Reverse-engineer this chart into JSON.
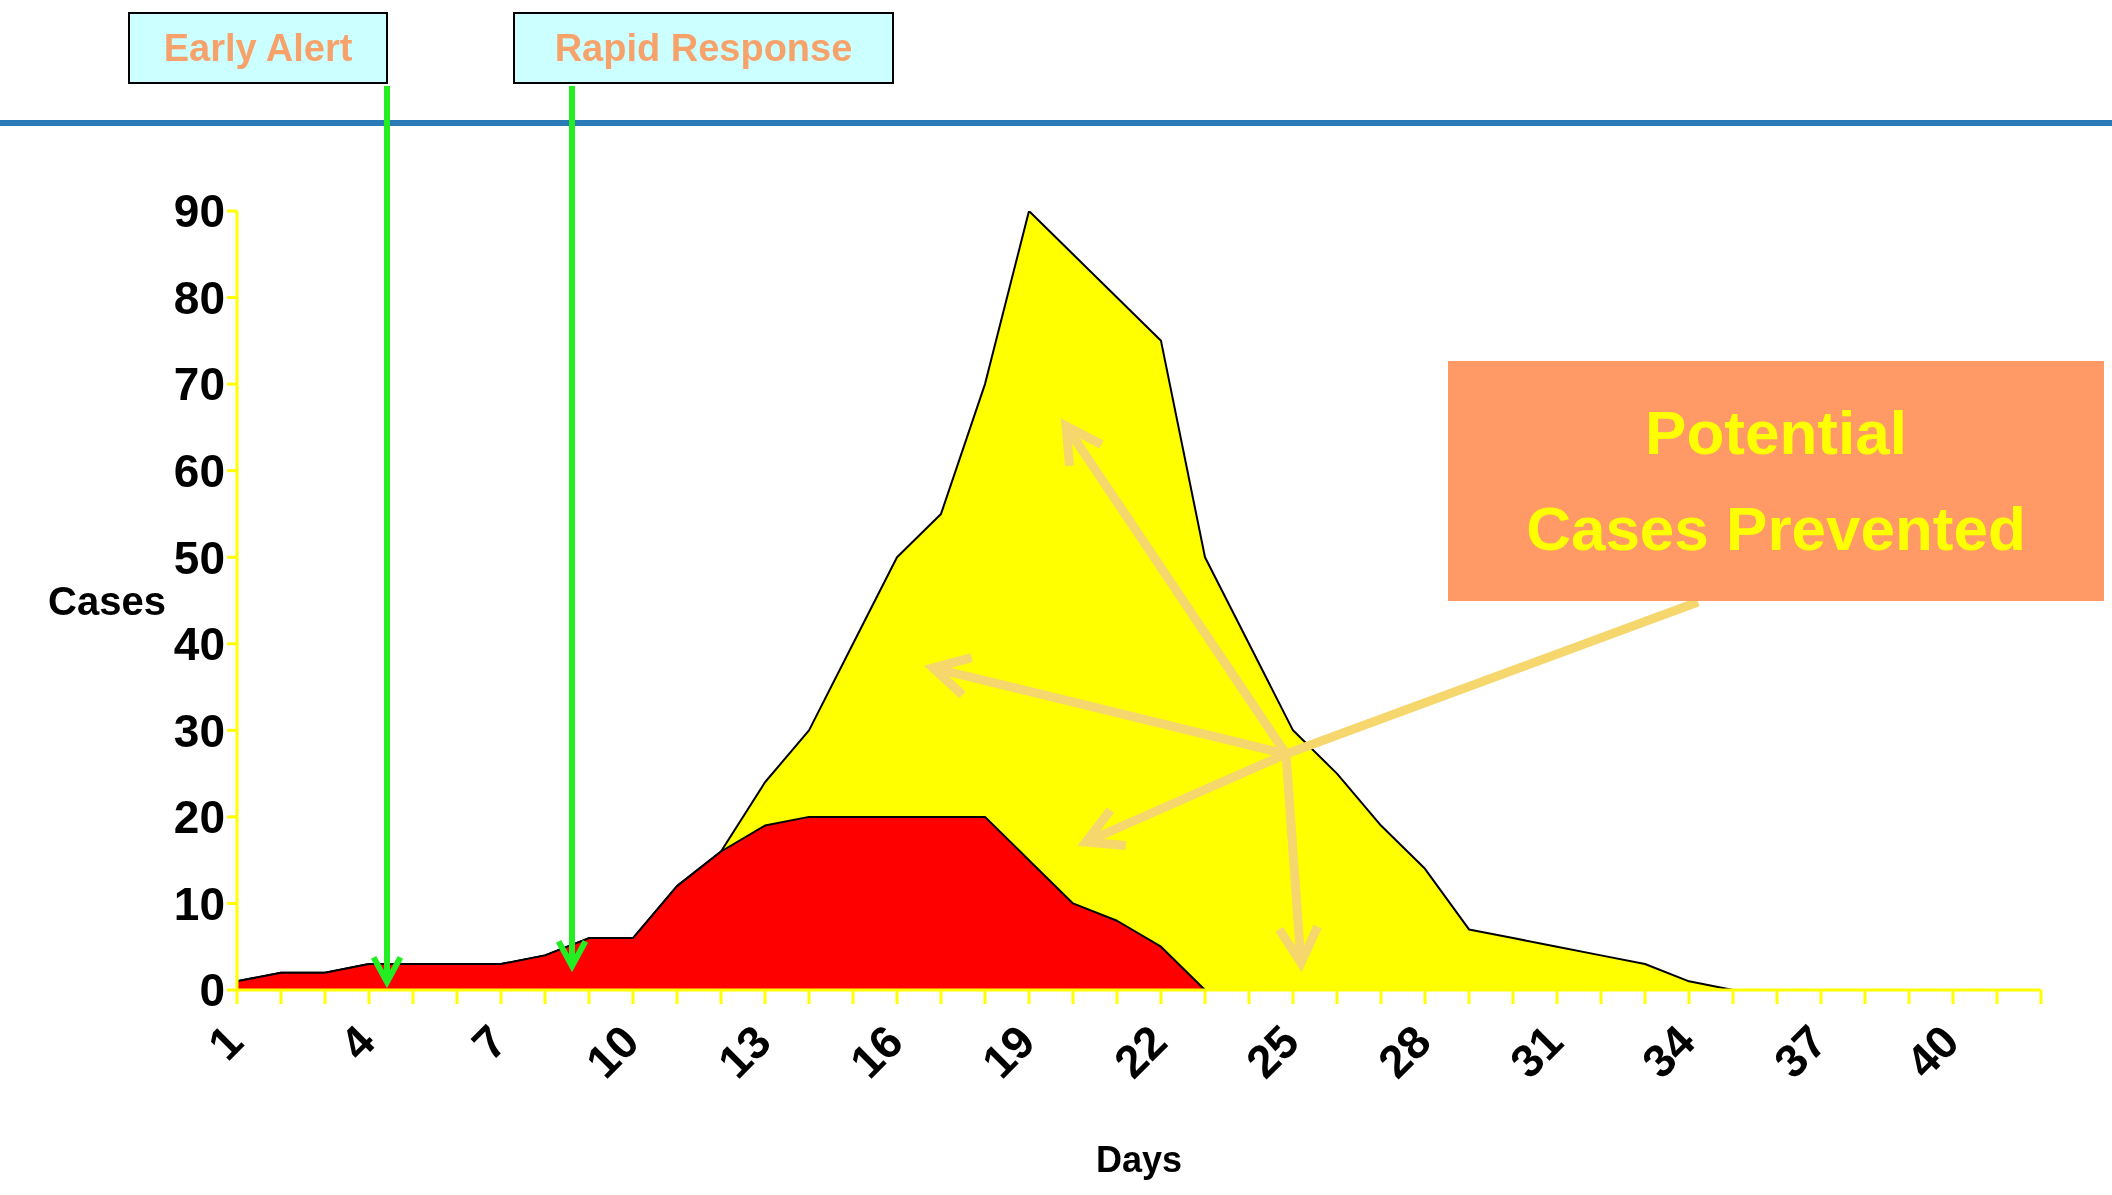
{
  "chart_data": {
    "type": "area",
    "xlabel": "Days",
    "ylabel": "Cases",
    "categories": [
      "1",
      null,
      null,
      "4",
      null,
      null,
      "7",
      null,
      null,
      "10",
      null,
      null,
      "13",
      null,
      null,
      "16",
      null,
      null,
      "19",
      null,
      null,
      "22",
      null,
      null,
      "25",
      null,
      null,
      "28",
      null,
      null,
      "31",
      null,
      null,
      "34",
      null,
      null,
      "37",
      null,
      null,
      "40",
      null,
      null
    ],
    "series": [
      {
        "color": "#ffff00",
        "values": [
          1,
          2,
          2,
          3,
          3,
          3,
          3,
          4,
          6,
          6,
          12,
          16,
          24,
          30,
          40,
          50,
          55,
          70,
          90,
          85,
          80,
          75,
          50,
          40,
          30,
          25,
          19,
          14,
          7,
          6,
          5,
          4,
          3,
          1,
          0,
          0,
          0,
          0,
          0,
          0,
          0,
          0
        ]
      },
      {
        "color": "#ff0000",
        "values": [
          1,
          2,
          2,
          3,
          3,
          3,
          3,
          4,
          6,
          6,
          12,
          16,
          19,
          20,
          20,
          20,
          20,
          20,
          15,
          10,
          8,
          5,
          0,
          null,
          null,
          null,
          null,
          null,
          null,
          null,
          null,
          null,
          null,
          null,
          null,
          null,
          null,
          null,
          null,
          null,
          null,
          null
        ]
      }
    ],
    "ylim": [
      0,
      90
    ],
    "yticks": [
      0,
      10,
      20,
      30,
      40,
      50,
      60,
      70,
      80,
      90
    ],
    "grid": false,
    "legend": false,
    "annotations": [
      "Early Alert",
      "Rapid Response",
      "Potential\nCases Prevented"
    ]
  }
}
